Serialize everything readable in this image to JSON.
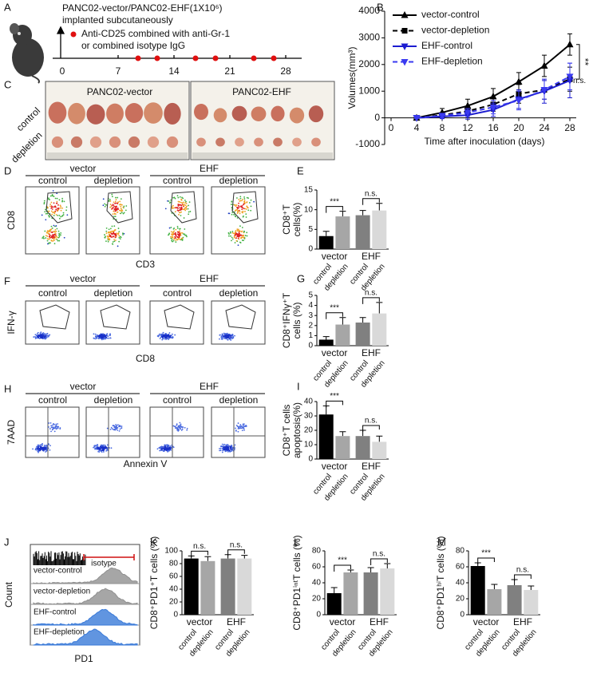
{
  "panel_a": {
    "letter": "A",
    "line1": "PANC02-vector/PANC02-EHF(1X10⁶)",
    "line2": "implanted subcutaneously",
    "legend1": "Anti-CD25 combined with anti-Gr-1",
    "legend2": "or combined isotype IgG",
    "days": [
      "0",
      "7",
      "14",
      "21",
      "28"
    ]
  },
  "panel_c": {
    "letter": "C",
    "left": "PANC02-vector",
    "right": "PANC02-EHF",
    "rows": [
      "control",
      "depletion"
    ]
  },
  "panel_d": {
    "letter": "D",
    "groups": [
      "vector",
      "EHF"
    ],
    "columns": [
      "control",
      "depletion",
      "control",
      "depletion"
    ],
    "ylabel": "CD8",
    "xlabel": "CD3"
  },
  "panel_f": {
    "letter": "F",
    "groups": [
      "vector",
      "EHF"
    ],
    "columns": [
      "control",
      "depletion",
      "control",
      "depletion"
    ],
    "ylabel": "IFN-γ",
    "xlabel": "CD8"
  },
  "panel_h": {
    "letter": "H",
    "groups": [
      "vector",
      "EHF"
    ],
    "columns": [
      "control",
      "depletion",
      "control",
      "depletion"
    ],
    "ylabel": "7AAD",
    "xlabel": "Annexin V"
  },
  "panel_j": {
    "letter": "J",
    "isotype": "isotype",
    "tracks": [
      "vector-control",
      "vector-depletion",
      "EHF-control",
      "EHF-depletion"
    ],
    "ylabel": "Count",
    "xlabel": "PD1"
  },
  "chart_data": [
    {
      "type": "line",
      "letter": "B",
      "ylabel": "Volumes(mm³)",
      "xlabel": "Time after inoculation (days)",
      "x": [
        4,
        8,
        12,
        16,
        20,
        24,
        28
      ],
      "series": [
        {
          "name": "vector-control",
          "color": "#000000",
          "linestyle": "solid",
          "marker": "triangle-up",
          "values": [
            0,
            200,
            450,
            800,
            1350,
            1950,
            2750
          ],
          "errors": [
            30,
            150,
            250,
            300,
            350,
            400,
            400
          ]
        },
        {
          "name": "vector-depletion",
          "color": "#000000",
          "linestyle": "dashed",
          "marker": "square",
          "values": [
            0,
            100,
            250,
            500,
            900,
            1050,
            1450
          ],
          "errors": [
            30,
            100,
            150,
            250,
            350,
            350,
            450
          ]
        },
        {
          "name": "EHF-control",
          "color": "#1c1cd0",
          "linestyle": "solid",
          "marker": "triangle-down",
          "values": [
            0,
            50,
            100,
            300,
            700,
            1000,
            1400
          ],
          "errors": [
            20,
            80,
            150,
            250,
            350,
            450,
            650
          ]
        },
        {
          "name": "EHF-depletion",
          "color": "#3a3af0",
          "linestyle": "dashed",
          "marker": "triangle-down",
          "values": [
            0,
            80,
            200,
            400,
            650,
            1050,
            1550
          ],
          "errors": [
            20,
            80,
            150,
            250,
            350,
            350,
            500
          ]
        }
      ],
      "xlim": [
        -1,
        29
      ],
      "ylim": [
        -1000,
        4000
      ],
      "xticks": [
        0,
        4,
        8,
        12,
        16,
        20,
        24,
        28
      ],
      "yticks": [
        -1000,
        0,
        1000,
        2000,
        3000,
        4000
      ],
      "legend": "upper left",
      "annotations": [
        "**",
        "n.s."
      ]
    },
    {
      "type": "bar",
      "letter": "E",
      "ylabel": [
        "CD8⁺T",
        "cells(%)"
      ],
      "categories": [
        "control",
        "depletion",
        "control",
        "depletion"
      ],
      "groups": [
        "vector",
        "EHF"
      ],
      "values": [
        3.3,
        8.3,
        8.6,
        9.8
      ],
      "errors": [
        1.2,
        1.3,
        1.2,
        1.8
      ],
      "colors": [
        "#000000",
        "#a6a6a6",
        "#808080",
        "#d9d9d9"
      ],
      "ylim": [
        0,
        15
      ],
      "yticks": [
        0,
        5,
        10,
        15
      ],
      "annotations": [
        "***",
        "n.s."
      ]
    },
    {
      "type": "bar",
      "letter": "G",
      "ylabel": [
        "CD8⁺IFNγ⁺T",
        "cells (%)"
      ],
      "categories": [
        "control",
        "depletion",
        "control",
        "depletion"
      ],
      "groups": [
        "vector",
        "EHF"
      ],
      "values": [
        0.6,
        2.1,
        2.3,
        3.2
      ],
      "errors": [
        0.3,
        0.7,
        0.5,
        1.1
      ],
      "colors": [
        "#000000",
        "#a6a6a6",
        "#808080",
        "#d9d9d9"
      ],
      "ylim": [
        0,
        5
      ],
      "yticks": [
        0,
        1,
        2,
        3,
        4,
        5
      ],
      "annotations": [
        "***",
        "n.s."
      ]
    },
    {
      "type": "bar",
      "letter": "I",
      "ylabel": [
        "CD8⁺T cells",
        "apoptosis(%)"
      ],
      "categories": [
        "control",
        "depletion",
        "control",
        "depletion"
      ],
      "groups": [
        "vector",
        "EHF"
      ],
      "values": [
        31,
        16,
        16,
        12
      ],
      "errors": [
        6,
        3,
        4,
        4
      ],
      "colors": [
        "#000000",
        "#a6a6a6",
        "#808080",
        "#d9d9d9"
      ],
      "ylim": [
        0,
        40
      ],
      "yticks": [
        0,
        10,
        20,
        30,
        40
      ],
      "annotations": [
        "***",
        "n.s."
      ]
    },
    {
      "type": "bar",
      "letter": "K",
      "ylabel": [
        "CD8⁺PD1⁺T cells (%)"
      ],
      "categories": [
        "control",
        "depletion",
        "control",
        "depletion"
      ],
      "groups": [
        "vector",
        "EHF"
      ],
      "values": [
        88,
        84,
        88,
        88
      ],
      "errors": [
        4,
        7,
        6,
        5
      ],
      "colors": [
        "#000000",
        "#a6a6a6",
        "#808080",
        "#d9d9d9"
      ],
      "ylim": [
        0,
        100
      ],
      "yticks": [
        0,
        20,
        40,
        60,
        80,
        100
      ],
      "annotations": [
        "n.s.",
        "n.s."
      ]
    },
    {
      "type": "bar",
      "letter": "L",
      "ylabel": [
        "CD8⁺PD1ⁱⁿᵗT cells (%)"
      ],
      "categories": [
        "control",
        "depletion",
        "control",
        "depletion"
      ],
      "groups": [
        "vector",
        "EHF"
      ],
      "values": [
        27,
        53,
        53,
        58
      ],
      "errors": [
        7,
        3,
        6,
        6
      ],
      "colors": [
        "#000000",
        "#a6a6a6",
        "#808080",
        "#d9d9d9"
      ],
      "ylim": [
        0,
        80
      ],
      "yticks": [
        0,
        20,
        40,
        60,
        80
      ],
      "annotations": [
        "***",
        "n.s."
      ]
    },
    {
      "type": "bar",
      "letter": "M",
      "ylabel": [
        "CD8⁺PD1ʰⁱT cells (%)"
      ],
      "categories": [
        "control",
        "depletion",
        "control",
        "depletion"
      ],
      "groups": [
        "vector",
        "EHF"
      ],
      "values": [
        61,
        32,
        37,
        31
      ],
      "errors": [
        4,
        6,
        7,
        5
      ],
      "colors": [
        "#000000",
        "#a6a6a6",
        "#808080",
        "#d9d9d9"
      ],
      "ylim": [
        0,
        80
      ],
      "yticks": [
        0,
        20,
        40,
        60,
        80
      ],
      "annotations": [
        "***",
        "n.s."
      ]
    }
  ]
}
